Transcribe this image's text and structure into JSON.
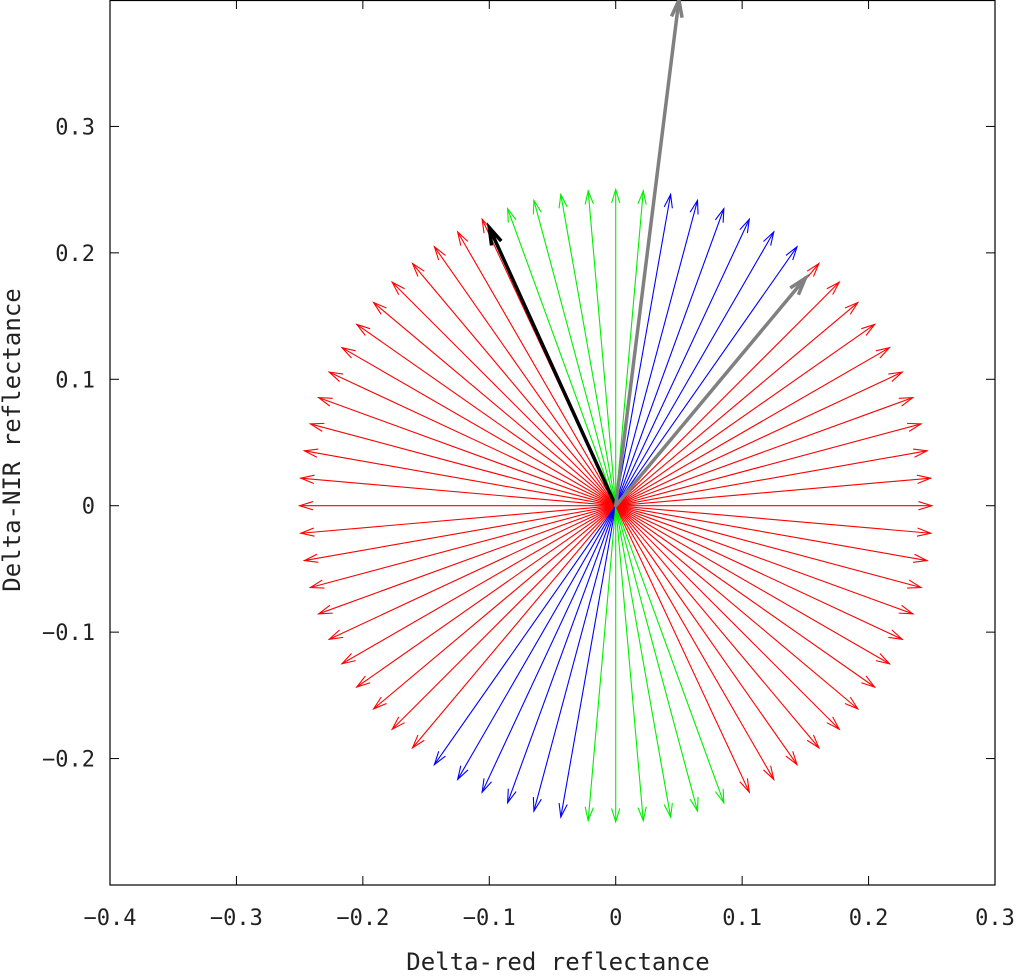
{
  "chart_data": {
    "type": "quiver",
    "title": "",
    "xlabel": "Delta-red reflectance",
    "ylabel": "Delta-NIR reflectance",
    "xlim": [
      -0.4,
      0.3
    ],
    "ylim": [
      -0.3,
      0.4
    ],
    "xticks": [
      -0.4,
      -0.3,
      -0.2,
      -0.1,
      0,
      0.1,
      0.2,
      0.3
    ],
    "xtick_labels": [
      "−0.4",
      "−0.3",
      "−0.2",
      "−0.1",
      "0",
      "0.1",
      "0.2",
      "0.3"
    ],
    "yticks": [
      -0.2,
      -0.1,
      0,
      0.1,
      0.2,
      0.3
    ],
    "ytick_labels": [
      "−0.2",
      "−0.1",
      "0",
      "0.1",
      "0.2",
      "0.3"
    ],
    "grid": false,
    "origin": [
      0,
      0
    ],
    "fan": {
      "magnitude": 0.25,
      "count": 72,
      "colors": {
        "red": "#ff0000",
        "green": "#00ee00",
        "blue": "#0000ff"
      },
      "bands_deg": [
        {
          "from": 0,
          "to": 55,
          "color": "red"
        },
        {
          "from": 55,
          "to": 85,
          "color": "blue"
        },
        {
          "from": 85,
          "to": 115,
          "color": "green"
        },
        {
          "from": 115,
          "to": 235,
          "color": "red"
        },
        {
          "from": 235,
          "to": 265,
          "color": "blue"
        },
        {
          "from": 265,
          "to": 295,
          "color": "green"
        },
        {
          "from": 295,
          "to": 360,
          "color": "red"
        }
      ]
    },
    "highlight_arrows": [
      {
        "dx": -0.1,
        "dy": 0.22,
        "color": "#000000"
      },
      {
        "dx": 0.05,
        "dy": 0.4,
        "color": "#808080"
      },
      {
        "dx": 0.15,
        "dy": 0.18,
        "color": "#808080"
      }
    ]
  }
}
